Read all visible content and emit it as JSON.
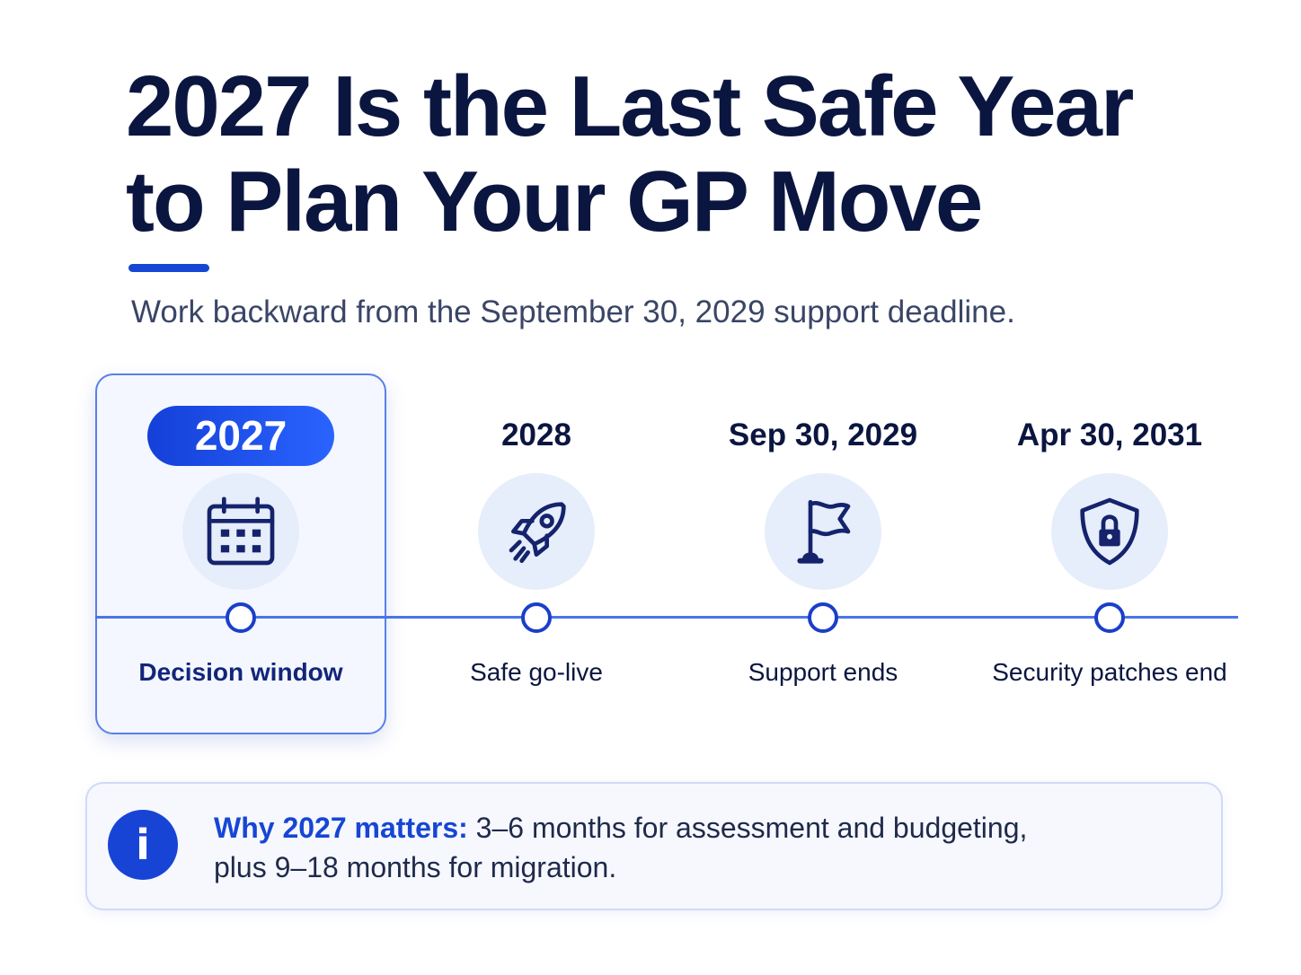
{
  "header": {
    "title_line1": "2027 Is the Last Safe Year",
    "title_line2": "to Plan Your GP Move",
    "subtitle": "Work backward from the September 30, 2029 support deadline."
  },
  "timeline": {
    "milestones": [
      {
        "date": "2027",
        "caption": "Decision window",
        "icon": "calendar-icon",
        "highlighted": true
      },
      {
        "date": "2028",
        "caption": "Safe go-live",
        "icon": "rocket-icon",
        "highlighted": false
      },
      {
        "date": "Sep 30, 2029",
        "caption": "Support ends",
        "icon": "flag-icon",
        "highlighted": false
      },
      {
        "date": "Apr 30, 2031",
        "caption": "Security patches end",
        "icon": "shield-lock-icon",
        "highlighted": false
      }
    ]
  },
  "callout": {
    "icon": "info-icon",
    "lead": "Why 2027 matters:",
    "text_line1": " 3–6 months for assessment and budgeting,",
    "text_line2": "plus 9–18 months for migration."
  },
  "colors": {
    "navy": "#0b1640",
    "accent": "#1746d4",
    "icon_bg": "#e6edfb"
  }
}
